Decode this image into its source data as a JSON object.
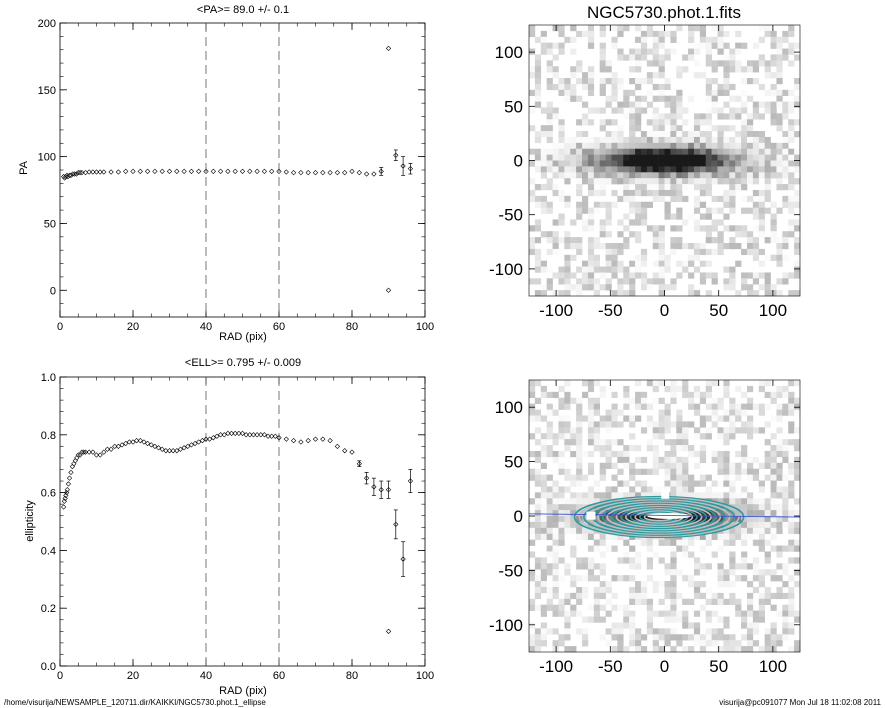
{
  "footer": {
    "path": "/home/visurija/NEWSAMPLE_120711.dir/KAIKKI/NGC5730.phot.1_ellipse",
    "user_date": "visurija@pc091077  Mon Jul 18 11:02:08 2011"
  },
  "chart_data": [
    {
      "type": "scatter",
      "title": "<PA>=  89.0 +/-   0.1",
      "xlabel": "RAD (pix)",
      "ylabel": "PA",
      "xlim": [
        0,
        100
      ],
      "ylim": [
        -20,
        200
      ],
      "xticks": [
        0,
        20,
        40,
        60,
        80,
        100
      ],
      "yticks": [
        0,
        50,
        100,
        150,
        200
      ],
      "vlines": [
        40,
        60
      ],
      "points": [
        [
          1.0,
          85
        ],
        [
          1.3,
          84
        ],
        [
          1.6,
          85
        ],
        [
          1.9,
          86
        ],
        [
          2.2,
          85
        ],
        [
          2.6,
          86
        ],
        [
          3.0,
          86
        ],
        [
          3.5,
          87
        ],
        [
          4.0,
          87
        ],
        [
          4.5,
          87
        ],
        [
          5.0,
          88
        ],
        [
          5.5,
          88
        ],
        [
          6.0,
          88
        ],
        [
          7.0,
          88
        ],
        [
          8.0,
          88.5
        ],
        [
          9.0,
          88.5
        ],
        [
          10.0,
          88.5
        ],
        [
          11.0,
          88.5
        ],
        [
          12.0,
          88.5
        ],
        [
          14.0,
          88.5
        ],
        [
          16.0,
          88.5
        ],
        [
          18.0,
          89
        ],
        [
          20.0,
          89
        ],
        [
          22.0,
          89
        ],
        [
          24.0,
          89
        ],
        [
          26.0,
          89
        ],
        [
          28.0,
          89
        ],
        [
          30.0,
          89
        ],
        [
          32.0,
          89
        ],
        [
          34.0,
          89
        ],
        [
          36.0,
          89
        ],
        [
          38.0,
          89
        ],
        [
          40.0,
          89
        ],
        [
          42.0,
          89
        ],
        [
          44.0,
          89
        ],
        [
          46.0,
          89
        ],
        [
          48.0,
          89
        ],
        [
          50.0,
          89
        ],
        [
          52.0,
          89
        ],
        [
          54.0,
          89
        ],
        [
          56.0,
          89
        ],
        [
          58.0,
          89
        ],
        [
          60.0,
          89
        ],
        [
          62.0,
          88.5
        ],
        [
          64.0,
          88
        ],
        [
          66.0,
          88
        ],
        [
          68.0,
          88
        ],
        [
          70.0,
          88
        ],
        [
          72.0,
          88
        ],
        [
          74.0,
          88
        ],
        [
          76.0,
          88
        ],
        [
          78.0,
          88
        ],
        [
          80.0,
          89
        ],
        [
          82.0,
          88
        ],
        [
          84.0,
          87
        ],
        [
          86.0,
          87
        ],
        [
          88.0,
          89
        ],
        [
          90.0,
          181
        ],
        [
          90.0,
          0
        ],
        [
          92.0,
          101
        ],
        [
          94.0,
          93
        ],
        [
          96.0,
          91
        ]
      ],
      "errors": [
        [
          88.0,
          3
        ],
        [
          92.0,
          4
        ],
        [
          94.0,
          7
        ],
        [
          96.0,
          4
        ]
      ]
    },
    {
      "type": "image",
      "title": "NGC5730.phot.1.fits",
      "xlim": [
        -125,
        125
      ],
      "ylim": [
        -125,
        125
      ],
      "xticks": [
        -100,
        -50,
        0,
        50,
        100
      ],
      "yticks": [
        -100,
        -50,
        0,
        50,
        100
      ]
    },
    {
      "type": "scatter",
      "title": "<ELL>= 0.795 +/-  0.009",
      "xlabel": "RAD (pix)",
      "ylabel": "ellipticity",
      "xlim": [
        0,
        100
      ],
      "ylim": [
        0.0,
        1.0
      ],
      "xticks": [
        0,
        20,
        40,
        60,
        80,
        100
      ],
      "yticks": [
        0.0,
        0.2,
        0.4,
        0.6,
        0.8,
        1.0
      ],
      "ytick_labels": [
        "0.0",
        "0.2",
        "0.4",
        "0.6",
        "0.8",
        "1.0"
      ],
      "vlines": [
        40,
        60
      ],
      "points": [
        [
          1.0,
          0.55
        ],
        [
          1.2,
          0.57
        ],
        [
          1.4,
          0.58
        ],
        [
          1.6,
          0.59
        ],
        [
          1.8,
          0.6
        ],
        [
          2.0,
          0.61
        ],
        [
          2.3,
          0.63
        ],
        [
          2.6,
          0.65
        ],
        [
          3.0,
          0.67
        ],
        [
          3.4,
          0.69
        ],
        [
          3.8,
          0.7
        ],
        [
          4.2,
          0.71
        ],
        [
          4.6,
          0.72
        ],
        [
          5.0,
          0.73
        ],
        [
          5.5,
          0.73
        ],
        [
          6.0,
          0.74
        ],
        [
          6.5,
          0.74
        ],
        [
          7.0,
          0.74
        ],
        [
          8.0,
          0.74
        ],
        [
          9.0,
          0.74
        ],
        [
          10.0,
          0.73
        ],
        [
          11.0,
          0.73
        ],
        [
          12.0,
          0.74
        ],
        [
          13.0,
          0.75
        ],
        [
          14.0,
          0.75
        ],
        [
          15.0,
          0.76
        ],
        [
          16.0,
          0.76
        ],
        [
          17.0,
          0.765
        ],
        [
          18.0,
          0.77
        ],
        [
          19.0,
          0.775
        ],
        [
          20.0,
          0.775
        ],
        [
          21.0,
          0.78
        ],
        [
          22.0,
          0.78
        ],
        [
          23.0,
          0.775
        ],
        [
          24.0,
          0.77
        ],
        [
          25.0,
          0.765
        ],
        [
          26.0,
          0.76
        ],
        [
          27.0,
          0.755
        ],
        [
          28.0,
          0.75
        ],
        [
          29.0,
          0.745
        ],
        [
          30.0,
          0.745
        ],
        [
          31.0,
          0.745
        ],
        [
          32.0,
          0.745
        ],
        [
          33.0,
          0.75
        ],
        [
          34.0,
          0.755
        ],
        [
          35.0,
          0.76
        ],
        [
          36.0,
          0.765
        ],
        [
          37.0,
          0.77
        ],
        [
          38.0,
          0.775
        ],
        [
          39.0,
          0.78
        ],
        [
          40.0,
          0.785
        ],
        [
          41.0,
          0.785
        ],
        [
          42.0,
          0.79
        ],
        [
          43.0,
          0.795
        ],
        [
          44.0,
          0.8
        ],
        [
          45.0,
          0.8
        ],
        [
          46.0,
          0.805
        ],
        [
          47.0,
          0.805
        ],
        [
          48.0,
          0.805
        ],
        [
          49.0,
          0.805
        ],
        [
          50.0,
          0.805
        ],
        [
          51.0,
          0.8
        ],
        [
          52.0,
          0.8
        ],
        [
          53.0,
          0.8
        ],
        [
          54.0,
          0.8
        ],
        [
          55.0,
          0.8
        ],
        [
          56.0,
          0.8
        ],
        [
          57.0,
          0.795
        ],
        [
          58.0,
          0.795
        ],
        [
          59.0,
          0.795
        ],
        [
          60.0,
          0.79
        ],
        [
          62.0,
          0.785
        ],
        [
          64.0,
          0.78
        ],
        [
          66.0,
          0.775
        ],
        [
          68.0,
          0.78
        ],
        [
          70.0,
          0.785
        ],
        [
          72.0,
          0.785
        ],
        [
          74.0,
          0.78
        ],
        [
          76.0,
          0.76
        ],
        [
          78.0,
          0.745
        ],
        [
          80.0,
          0.74
        ],
        [
          82.0,
          0.7
        ],
        [
          84.0,
          0.65
        ],
        [
          86.0,
          0.62
        ],
        [
          88.0,
          0.61
        ],
        [
          90.0,
          0.61
        ],
        [
          90.0,
          0.12
        ],
        [
          92.0,
          0.49
        ],
        [
          94.0,
          0.37
        ],
        [
          96.0,
          0.64
        ]
      ],
      "errors": [
        [
          82.0,
          0.01
        ],
        [
          84.0,
          0.02
        ],
        [
          86.0,
          0.03
        ],
        [
          88.0,
          0.03
        ],
        [
          90.0,
          0.03
        ],
        [
          92.0,
          0.05
        ],
        [
          94.0,
          0.06
        ],
        [
          96.0,
          0.04
        ]
      ]
    },
    {
      "type": "image",
      "title": "",
      "xlim": [
        -125,
        125
      ],
      "ylim": [
        -125,
        125
      ],
      "xticks": [
        -100,
        -50,
        0,
        50,
        100
      ],
      "yticks": [
        -100,
        -50,
        0,
        50,
        100
      ],
      "overlay_colors": [
        "#2e9aa0",
        "#bfbfbf",
        "#3a55d6"
      ]
    }
  ]
}
